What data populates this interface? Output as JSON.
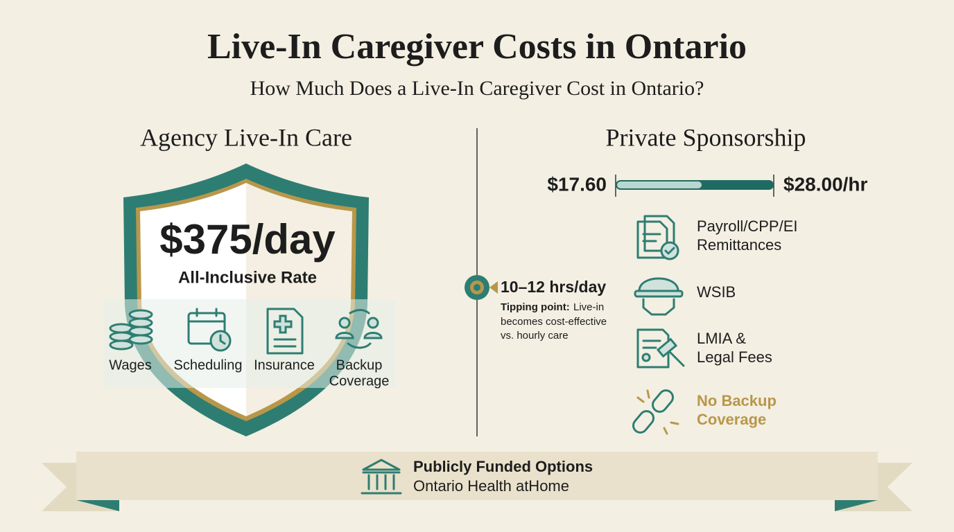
{
  "header": {
    "title": "Live-In Caregiver Costs in Ontario",
    "subtitle": "How Much Does a Live-In Caregiver Cost in Ontario?"
  },
  "agency": {
    "heading": "Agency Live-In Care",
    "rate": "$375/day",
    "rate_label": "All-Inclusive Rate",
    "items": [
      {
        "lines": [
          "Wages"
        ]
      },
      {
        "lines": [
          "Scheduling"
        ]
      },
      {
        "lines": [
          "Insurance"
        ]
      },
      {
        "lines": [
          "Backup",
          "Coverage"
        ]
      }
    ]
  },
  "private": {
    "heading": "Private Sponsorship",
    "range": {
      "low": "$17.60",
      "high": "$28.00/hr"
    },
    "tipping": {
      "hours": "10–12 hrs/day",
      "label": "Tipping point:",
      "lines": [
        "Live-in",
        "becomes cost-effective",
        "vs. hourly care"
      ]
    },
    "items": [
      {
        "lines": [
          "Payroll/CPP/EI",
          "Remittances"
        ]
      },
      {
        "lines": [
          "WSIB"
        ]
      },
      {
        "lines": [
          "LMIA &",
          "Legal Fees"
        ]
      },
      {
        "lines": [
          "No Backup",
          "Coverage"
        ]
      }
    ]
  },
  "footer": {
    "title": "Publicly Funded Options",
    "subtitle": "Ontario Health atHome"
  }
}
